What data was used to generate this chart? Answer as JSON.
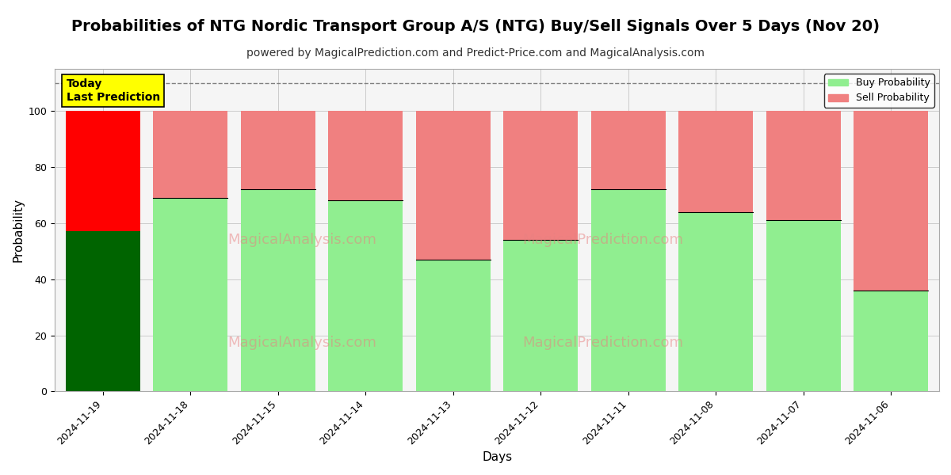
{
  "title": "Probabilities of NTG Nordic Transport Group A/S (NTG) Buy/Sell Signals Over 5 Days (Nov 20)",
  "subtitle": "powered by MagicalPrediction.com and Predict-Price.com and MagicalAnalysis.com",
  "xlabel": "Days",
  "ylabel": "Probability",
  "categories": [
    "2024-11-19",
    "2024-11-18",
    "2024-11-15",
    "2024-11-14",
    "2024-11-13",
    "2024-11-12",
    "2024-11-11",
    "2024-11-08",
    "2024-11-07",
    "2024-11-06"
  ],
  "buy_values": [
    57,
    69,
    72,
    68,
    47,
    54,
    72,
    64,
    61,
    36
  ],
  "sell_values": [
    43,
    31,
    28,
    32,
    53,
    46,
    28,
    36,
    39,
    64
  ],
  "buy_color_today": "#006400",
  "sell_color_today": "#FF0000",
  "buy_color_normal": "#90EE90",
  "sell_color_normal": "#F08080",
  "today_annotation_bg": "#FFFF00",
  "today_annotation_text": "Today\nLast Prediction",
  "ylim": [
    0,
    115
  ],
  "yticks": [
    0,
    20,
    40,
    60,
    80,
    100
  ],
  "dashed_line_y": 110,
  "legend_buy_label": "Buy Probability",
  "legend_sell_label": "Sell Probability",
  "background_color": "#f5f5f5",
  "grid_color": "#bbbbbb",
  "title_fontsize": 14,
  "subtitle_fontsize": 10
}
